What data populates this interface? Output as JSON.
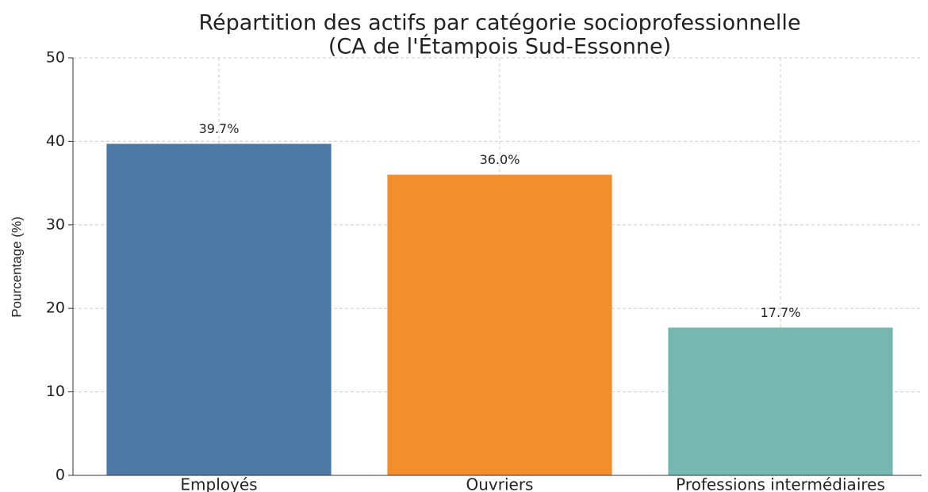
{
  "chart_data": {
    "type": "bar",
    "title": [
      "Répartition des actifs par catégorie socioprofessionnelle",
      "(CA de l'Étampois Sud-Essonne)"
    ],
    "y_label": "Pourcentage (%)",
    "categories": [
      "Employés",
      "Ouvriers",
      "Professions intermédiaires"
    ],
    "values": [
      39.7,
      36.0,
      17.7
    ],
    "value_labels": [
      "39.7%",
      "36.0%",
      "17.7%"
    ],
    "colors": [
      "#4e79a7",
      "#f28e2b",
      "#76b7b2"
    ],
    "ylim": [
      0,
      50
    ],
    "yticks": [
      0,
      10,
      20,
      30,
      40,
      50
    ],
    "grid": true
  }
}
